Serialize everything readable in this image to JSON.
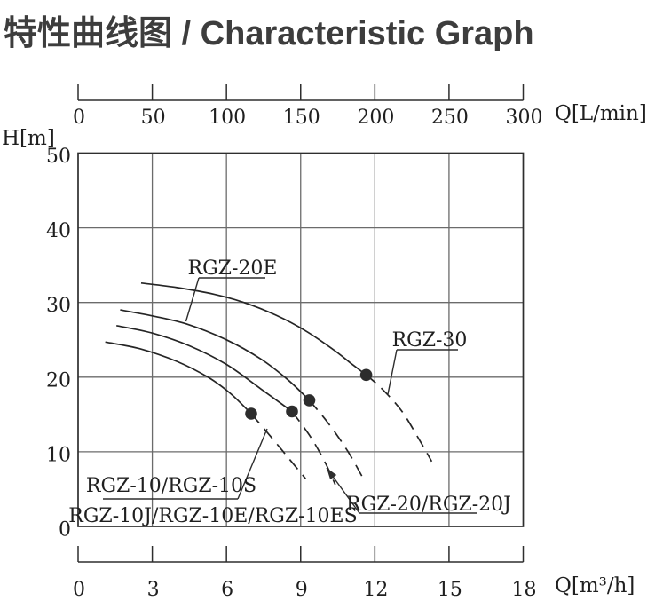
{
  "title": "特性曲线图 / Characteristic Graph",
  "colors": {
    "ink": "#252525",
    "grid": "#6b6b6b",
    "frame": "#2e2e2e",
    "title_text": "#3d3d3d",
    "dot": "#2d2d2d"
  },
  "chart_data": {
    "type": "line",
    "title": "特性曲线图 / Characteristic Graph",
    "grid": true,
    "top_axis": {
      "unit": "Q[L/min]",
      "ticks": [
        0,
        50,
        100,
        150,
        200,
        250,
        300
      ],
      "range": [
        0,
        300
      ]
    },
    "left_axis": {
      "unit": "H[m]",
      "ticks": [
        50,
        40,
        30,
        20,
        10,
        0
      ],
      "range": [
        0,
        50
      ]
    },
    "bottom_axis": {
      "unit": "Q[m³/h]",
      "ticks": [
        0,
        3,
        6,
        9,
        12,
        15,
        18
      ],
      "range": [
        0,
        18
      ]
    },
    "series": [
      {
        "id": "rgz30",
        "label": "RGZ-30",
        "solid": [
          [
            2.55,
            32.6
          ],
          [
            4.0,
            32.0
          ],
          [
            5.5,
            31.1
          ],
          [
            6.7,
            30.0
          ],
          [
            8.0,
            28.3
          ],
          [
            9.2,
            26.2
          ],
          [
            10.4,
            23.5
          ],
          [
            11.05,
            21.8
          ],
          [
            11.65,
            20.3
          ]
        ],
        "dashed": [
          [
            11.65,
            20.3
          ],
          [
            12.3,
            18.4
          ],
          [
            13.1,
            15.4
          ],
          [
            13.8,
            11.6
          ],
          [
            14.3,
            8.7
          ]
        ],
        "duty_point": [
          11.65,
          20.3
        ]
      },
      {
        "id": "rgz20e",
        "label": "RGZ-20E",
        "solid": [
          [
            1.7,
            29.0
          ],
          [
            3.0,
            28.2
          ],
          [
            4.4,
            27.1
          ],
          [
            6.0,
            25.0
          ],
          [
            7.4,
            22.4
          ],
          [
            8.5,
            19.6
          ],
          [
            9.35,
            16.9
          ]
        ],
        "dashed": [
          [
            9.35,
            16.9
          ],
          [
            10.1,
            13.9
          ],
          [
            10.9,
            10.1
          ],
          [
            11.6,
            6.0
          ]
        ],
        "duty_point": [
          9.35,
          16.9
        ]
      },
      {
        "id": "rgz20",
        "label": "RGZ-20/RGZ-20J",
        "solid": [
          [
            1.55,
            26.9
          ],
          [
            3.0,
            25.9
          ],
          [
            4.5,
            24.2
          ],
          [
            6.0,
            21.7
          ],
          [
            7.4,
            18.4
          ],
          [
            8.65,
            15.4
          ]
        ],
        "dashed": [
          [
            8.65,
            15.4
          ],
          [
            9.4,
            12.0
          ],
          [
            10.0,
            8.5
          ],
          [
            10.4,
            5.6
          ]
        ],
        "duty_point": [
          8.65,
          15.4
        ]
      },
      {
        "id": "rgz10",
        "label": "RGZ-10/RGZ-10S",
        "label2": "RGZ-10J/RGZ-10E/RGZ-10ES",
        "solid": [
          [
            1.1,
            24.7
          ],
          [
            2.5,
            23.8
          ],
          [
            4.0,
            22.1
          ],
          [
            5.3,
            19.9
          ],
          [
            6.2,
            17.7
          ],
          [
            7.0,
            15.1
          ]
        ],
        "dashed": [
          [
            7.0,
            15.1
          ],
          [
            7.8,
            12.0
          ],
          [
            8.5,
            9.2
          ],
          [
            9.2,
            6.4
          ]
        ],
        "duty_point": [
          7.0,
          15.1
        ]
      }
    ]
  }
}
